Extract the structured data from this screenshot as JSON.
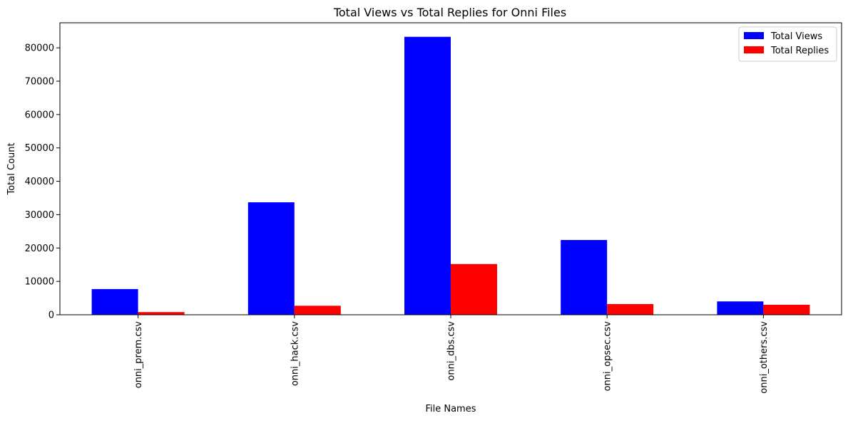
{
  "chart_data": {
    "type": "bar",
    "title": "Total Views vs Total Replies for Onni Files",
    "xlabel": "File Names",
    "ylabel": "Total Count",
    "categories": [
      "onni_prem.csv",
      "onni_hack.csv",
      "onni_dbs.csv",
      "onni_opsec.csv",
      "onni_others.csv"
    ],
    "series": [
      {
        "name": "Total Views",
        "color": "#0000ff",
        "values": [
          7700,
          33700,
          83300,
          22400,
          4000
        ]
      },
      {
        "name": "Total Replies",
        "color": "#ff0000",
        "values": [
          800,
          2700,
          15200,
          3200,
          3000
        ]
      }
    ],
    "ylim": [
      0,
      87500
    ],
    "yticks": [
      0,
      10000,
      20000,
      30000,
      40000,
      50000,
      60000,
      70000,
      80000
    ],
    "grid": false,
    "legend_position": "top-right"
  }
}
